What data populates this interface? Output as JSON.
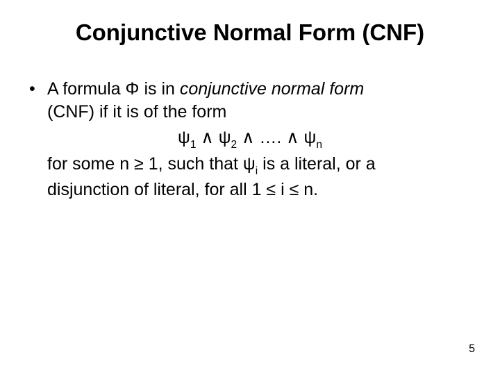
{
  "title": "Conjunctive Normal Form (CNF)",
  "bullet_marker": "•",
  "line1_prefix": "A formula Φ is in ",
  "line1_italic": "conjunctive normal form",
  "line2": "(CNF) if it is of the form",
  "formula": {
    "psi": "ψ",
    "wedge": "∧",
    "s1": "1",
    "s2": "2",
    "dots": "….",
    "sn": "n"
  },
  "line3_a": "for some n ≥ 1, such that ψ",
  "line3_sub": "i",
  "line3_b": " is a literal, or a",
  "line4": "disjunction of literal, for all 1 ≤ i ≤ n.",
  "page_number": "5",
  "colors": {
    "text": "#000000",
    "background": "#ffffff"
  },
  "typography": {
    "title_fontsize": 33,
    "body_fontsize": 25,
    "pagenum_fontsize": 16,
    "font_family": "Arial"
  }
}
